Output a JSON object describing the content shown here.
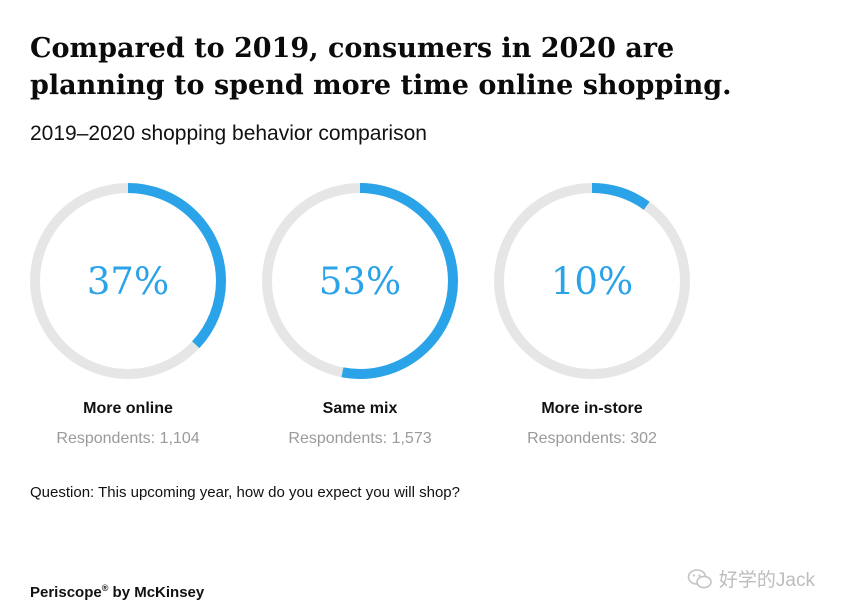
{
  "title": "Compared to 2019, consumers in 2020 are planning to spend more time online shopping.",
  "subtitle": "2019–2020 shopping behavior comparison",
  "colors": {
    "accent": "#2ba3e8",
    "track": "#e6e6e6",
    "muted": "#9a9a9a"
  },
  "chart_data": {
    "type": "pie",
    "title": "2019–2020 shopping behavior comparison",
    "categories": [
      "More online",
      "Same mix",
      "More in-store"
    ],
    "values": [
      37,
      53,
      10
    ],
    "value_labels": [
      "37%",
      "53%",
      "10%"
    ],
    "respondents": [
      "Respondents: 1,104",
      "Respondents: 1,573",
      "Respondents: 302"
    ]
  },
  "question": "Question: This upcoming year, how do you expect you will shop?",
  "footer": {
    "brand": "Periscope",
    "brand_mark": "®",
    "by": " by McKinsey"
  },
  "watermark": {
    "icon": "wechat-icon",
    "text": "好学的Jack"
  }
}
